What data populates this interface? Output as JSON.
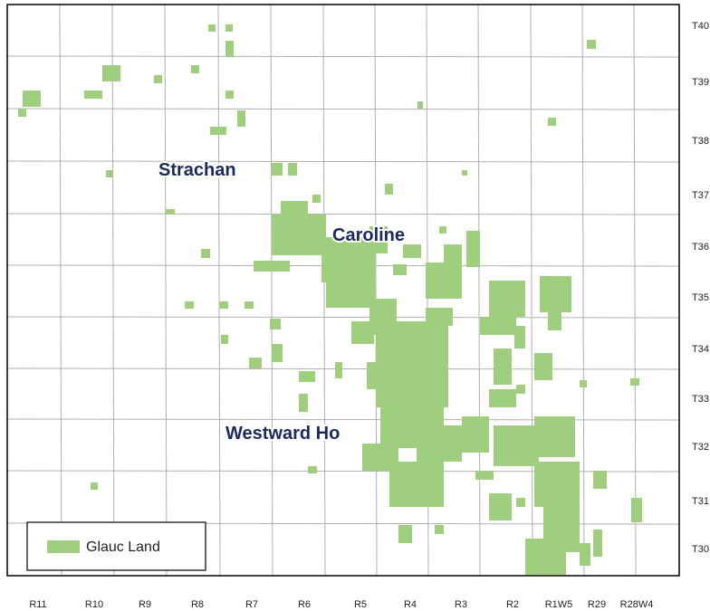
{
  "towns": [
    "Strachan",
    "Caroline",
    "Westward Ho"
  ],
  "legend": {
    "label": "Glauc Land"
  },
  "townships": [
    "T40",
    "T39",
    "T38",
    "T37",
    "T36",
    "T35",
    "T34",
    "T33",
    "T32",
    "T31",
    "T30"
  ],
  "ranges": [
    "R11",
    "R10",
    "R9",
    "R8",
    "R7",
    "R6",
    "R5",
    "R4",
    "R3",
    "R2",
    "R1W5",
    "R29",
    "R28W4"
  ]
}
